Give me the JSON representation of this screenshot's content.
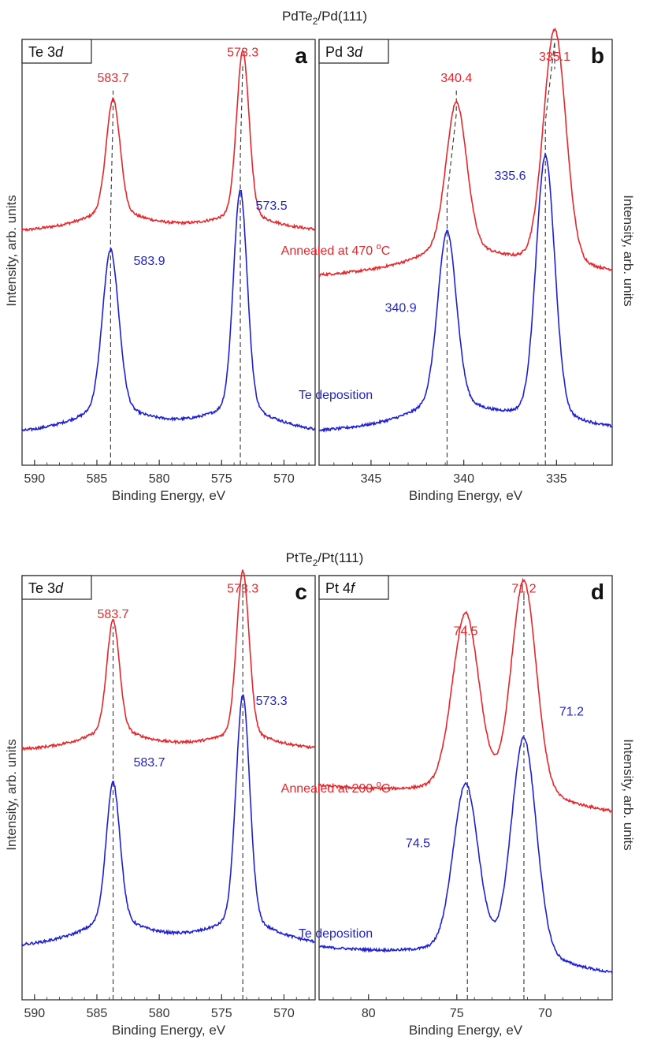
{
  "figure": {
    "top_title_base": "PdTe",
    "top_title_sub": "2",
    "top_title_rest": "/Pd(111)",
    "bottom_title_base": "PtTe",
    "bottom_title_sub": "2",
    "bottom_title_rest": "/Pt(111)",
    "ylabel_left": "Intensity, arb. units",
    "ylabel_right": "Intensity, arb. units",
    "xlabel": "Binding Energy, eV",
    "colors": {
      "annealed": "#e8262b",
      "deposition": "#1f1fd6",
      "axis": "#333333",
      "guide": "#444444"
    }
  },
  "annotations": {
    "top": {
      "annealed_base": "Annealed at 470 ",
      "annealed_sup": "o",
      "annealed_unit": "C",
      "deposition": "Te deposition"
    },
    "bottom": {
      "annealed_base": "Annealed at 200 ",
      "annealed_sup": "o",
      "annealed_unit": "C",
      "deposition": "Te deposition"
    }
  },
  "chart_data": [
    {
      "id": "a",
      "type": "line",
      "panel_letter": "a",
      "region_base": "Te 3",
      "region_italic": "d",
      "xlabel": "Binding Energy, eV",
      "ylabel": "Intensity, arb. units",
      "xlim": [
        591,
        567.5
      ],
      "ylim": [
        0,
        1
      ],
      "reversed_x": true,
      "xticks": [
        590,
        585,
        580,
        575,
        570
      ],
      "series": [
        {
          "key": "annealed",
          "baseline": 0.545,
          "slope": 0.0,
          "peaks": [
            {
              "x": 583.7,
              "h": 0.245,
              "w": 0.55,
              "t": 3.2,
              "a": 0.07
            },
            {
              "x": 573.3,
              "h": 0.365,
              "w": 0.5,
              "t": 3.0,
              "a": 0.06
            }
          ]
        },
        {
          "key": "deposition",
          "baseline": 0.068,
          "slope": 0.0,
          "peaks": [
            {
              "x": 583.9,
              "h": 0.345,
              "w": 0.65,
              "t": 3.6,
              "a": 0.09
            },
            {
              "x": 573.5,
              "h": 0.485,
              "w": 0.55,
              "t": 3.4,
              "a": 0.09
            }
          ]
        }
      ],
      "guides": [
        {
          "x": 583.9,
          "from": 0,
          "to_x": 583.7
        },
        {
          "x": 573.5,
          "from": 0,
          "to_x": 573.3
        }
      ],
      "labels": [
        {
          "text": "583.7",
          "key": "annealed",
          "x": 583.7,
          "y": 0.9
        },
        {
          "text": "573.3",
          "key": "annealed",
          "x": 573.3,
          "y": 0.96
        },
        {
          "text": "583.9",
          "key": "deposition",
          "x": 580.8,
          "y": 0.47
        },
        {
          "text": "573.5",
          "key": "deposition",
          "x": 571.0,
          "y": 0.6
        }
      ]
    },
    {
      "id": "b",
      "type": "line",
      "panel_letter": "b",
      "region_base": "Pd 3",
      "region_italic": "d",
      "xlabel": "Binding Energy, eV",
      "ylabel": "Intensity, arb. units",
      "xlim": [
        347.8,
        332.0
      ],
      "ylim": [
        0,
        1
      ],
      "reversed_x": true,
      "xticks": [
        345,
        340,
        335
      ],
      "series": [
        {
          "key": "annealed",
          "baseline": 0.44,
          "slope": 0.0,
          "peaks": [
            {
              "x": 340.4,
              "h": 0.31,
              "w": 0.55,
              "t": 2.8,
              "a": 0.1
            },
            {
              "x": 335.1,
              "h": 0.52,
              "w": 0.6,
              "t": 2.5,
              "a": 0.05
            }
          ]
        },
        {
          "key": "deposition",
          "baseline": 0.075,
          "slope": 0.0,
          "peaks": [
            {
              "x": 340.9,
              "h": 0.37,
              "w": 0.5,
              "t": 2.6,
              "a": 0.1
            },
            {
              "x": 335.6,
              "h": 0.58,
              "w": 0.5,
              "t": 2.4,
              "a": 0.06
            }
          ]
        }
      ],
      "guides": [
        {
          "x": 340.9,
          "from": 0,
          "to_x": 340.4
        },
        {
          "x": 335.6,
          "from": 0,
          "to_x": 335.1
        }
      ],
      "labels": [
        {
          "text": "340.4",
          "key": "annealed",
          "x": 340.4,
          "y": 0.9
        },
        {
          "text": "335.1",
          "key": "annealed",
          "x": 335.1,
          "y": 0.95
        },
        {
          "text": "335.6",
          "key": "deposition",
          "x": 337.5,
          "y": 0.67
        },
        {
          "text": "340.9",
          "key": "deposition",
          "x": 343.4,
          "y": 0.36
        }
      ]
    },
    {
      "id": "c",
      "type": "line",
      "panel_letter": "c",
      "region_base": "Te 3",
      "region_italic": "d",
      "xlabel": "Binding Energy, eV",
      "ylabel": "Intensity, arb. units",
      "xlim": [
        591,
        567.5
      ],
      "ylim": [
        0,
        1
      ],
      "reversed_x": true,
      "xticks": [
        590,
        585,
        580,
        575,
        570
      ],
      "series": [
        {
          "key": "annealed",
          "baseline": 0.585,
          "slope": 0.0,
          "peaks": [
            {
              "x": 583.7,
              "h": 0.24,
              "w": 0.5,
              "t": 3.0,
              "a": 0.07
            },
            {
              "x": 573.3,
              "h": 0.365,
              "w": 0.5,
              "t": 3.0,
              "a": 0.06
            }
          ]
        },
        {
          "key": "deposition",
          "baseline": 0.12,
          "slope": 0.0,
          "peaks": [
            {
              "x": 583.7,
              "h": 0.3,
              "w": 0.55,
              "t": 3.3,
              "a": 0.09
            },
            {
              "x": 573.3,
              "h": 0.505,
              "w": 0.55,
              "t": 3.4,
              "a": 0.09
            }
          ]
        }
      ],
      "guides": [
        {
          "x": 583.7,
          "from": 0,
          "to_x": 583.7
        },
        {
          "x": 573.3,
          "from": 0,
          "to_x": 573.3
        }
      ],
      "labels": [
        {
          "text": "583.7",
          "key": "annealed",
          "x": 583.7,
          "y": 0.9
        },
        {
          "text": "573.3",
          "key": "annealed",
          "x": 573.3,
          "y": 0.96
        },
        {
          "text": "583.7",
          "key": "deposition",
          "x": 580.8,
          "y": 0.55
        },
        {
          "text": "573.3",
          "key": "deposition",
          "x": 571.0,
          "y": 0.695
        }
      ]
    },
    {
      "id": "d",
      "type": "line",
      "panel_letter": "d",
      "region_base": "Pt 4",
      "region_italic": "f",
      "xlabel": "Binding Energy, eV",
      "ylabel": "Intensity, arb. units",
      "xlim": [
        82.8,
        66.2
      ],
      "ylim": [
        0,
        1
      ],
      "reversed_x": true,
      "xticks": [
        80,
        75,
        70
      ],
      "series": [
        {
          "key": "annealed",
          "baseline": 0.47,
          "slope": 0.004,
          "peaks": [
            {
              "x": 74.5,
              "h": 0.38,
              "w": 0.75,
              "t": 2.5,
              "a": 0.05
            },
            {
              "x": 71.2,
              "h": 0.47,
              "w": 0.7,
              "t": 2.4,
              "a": 0.05
            }
          ]
        },
        {
          "key": "deposition",
          "baseline": 0.09,
          "slope": 0.004,
          "peaks": [
            {
              "x": 74.5,
              "h": 0.36,
              "w": 0.7,
              "t": 2.4,
              "a": 0.05
            },
            {
              "x": 71.2,
              "h": 0.48,
              "w": 0.7,
              "t": 2.3,
              "a": 0.05
            }
          ]
        }
      ],
      "guides": [
        {
          "x": 74.4,
          "from": 0,
          "to_x": 74.5
        },
        {
          "x": 71.2,
          "from": 0,
          "to_x": 71.2
        }
      ],
      "labels": [
        {
          "text": "74.5",
          "key": "annealed",
          "x": 74.5,
          "y": 0.86
        },
        {
          "text": "71.2",
          "key": "annealed",
          "x": 71.2,
          "y": 0.96
        },
        {
          "text": "74.5",
          "key": "deposition",
          "x": 77.2,
          "y": 0.36
        },
        {
          "text": "71.2",
          "key": "deposition",
          "x": 68.5,
          "y": 0.67
        }
      ]
    }
  ]
}
